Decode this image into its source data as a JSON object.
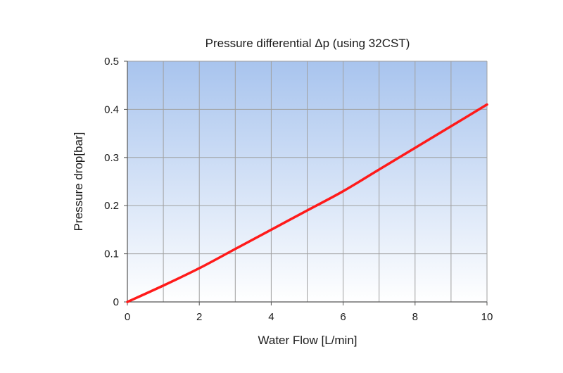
{
  "chart_data": {
    "type": "line",
    "title": "Pressure differential Δp (using 32CST)",
    "xlabel": "Water Flow [L/min]",
    "ylabel": "Pressure drop[bar]",
    "xlim": [
      0,
      10
    ],
    "ylim": [
      0,
      0.5
    ],
    "x_ticks": [
      "0",
      "2",
      "4",
      "6",
      "8",
      "10"
    ],
    "y_ticks": [
      "0",
      "0.1",
      "0.2",
      "0.3",
      "0.4",
      "0.5"
    ],
    "x_tick_values": [
      0,
      2,
      4,
      6,
      8,
      10
    ],
    "y_tick_values": [
      0,
      0.1,
      0.2,
      0.3,
      0.4,
      0.5
    ],
    "x_grid_values": [
      0,
      1,
      2,
      3,
      4,
      5,
      6,
      7,
      8,
      9,
      10
    ],
    "y_grid_values": [
      0,
      0.1,
      0.2,
      0.3,
      0.4,
      0.5
    ],
    "grid": true,
    "legend": false,
    "series": [
      {
        "color": "#ff1a1a",
        "x": [
          0,
          1,
          2,
          3,
          4,
          5,
          6,
          7,
          8,
          9,
          10
        ],
        "y": [
          0,
          0.034,
          0.07,
          0.11,
          0.15,
          0.19,
          0.23,
          0.275,
          0.32,
          0.365,
          0.41
        ]
      }
    ],
    "colors": {
      "plot_bg_top": "#a8c4ee",
      "plot_bg_bottom": "#ffffff",
      "grid": "#a0a0a0",
      "axis": "#555555"
    }
  }
}
